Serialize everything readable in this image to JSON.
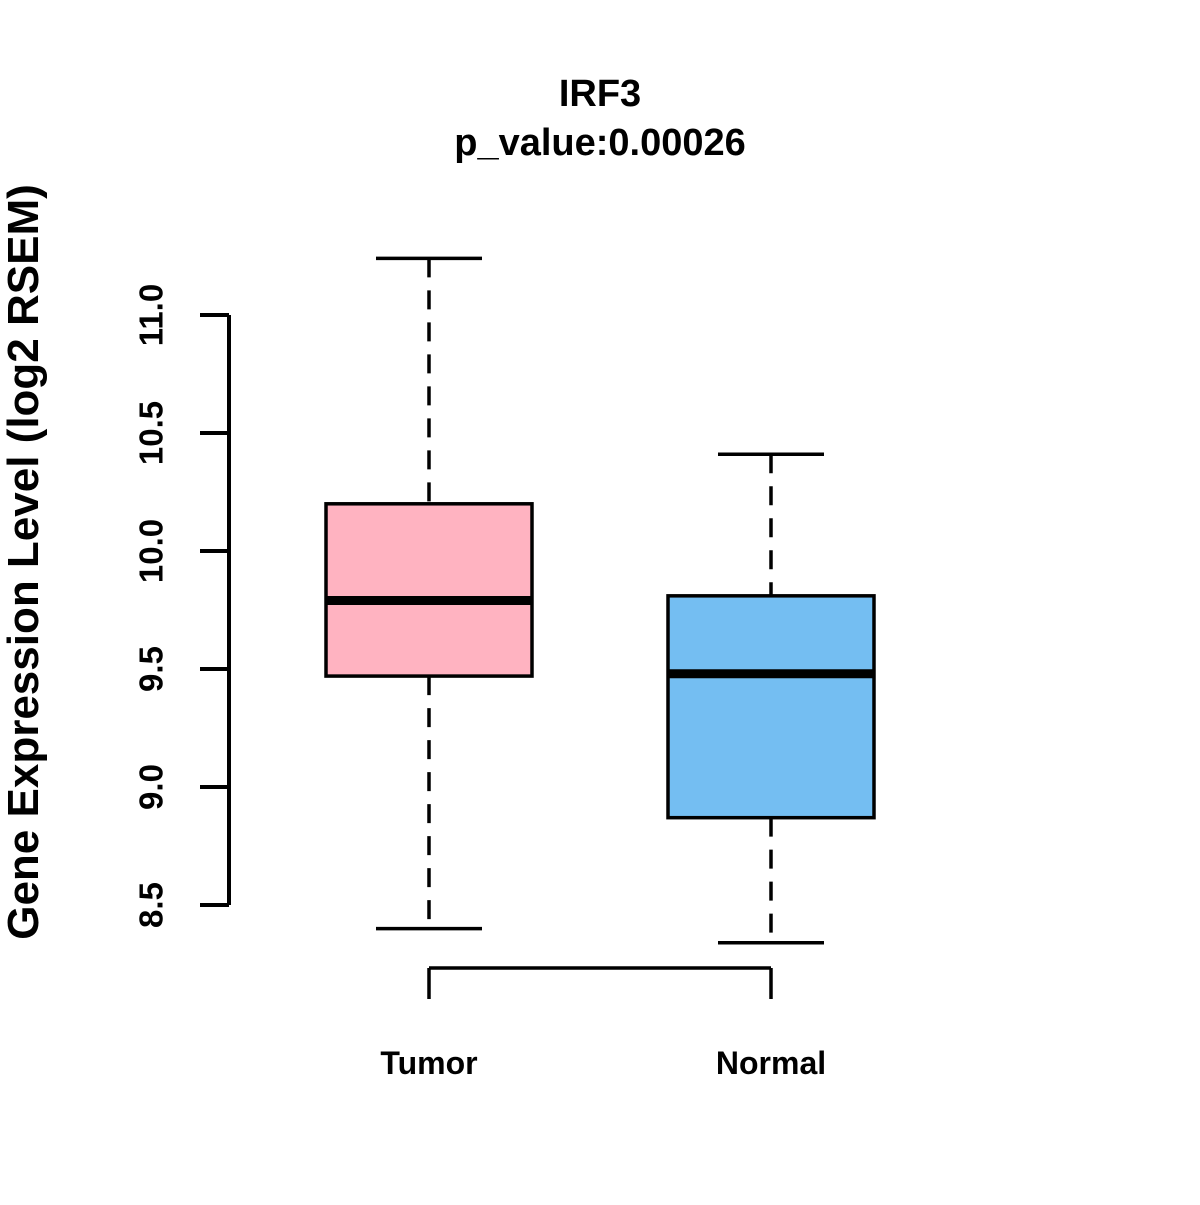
{
  "chart_data": {
    "type": "boxplot",
    "title": "IRF3",
    "subtitle": "p_value:0.00026",
    "ylabel": "Gene Expression Level (log2 RSEM)",
    "xlabel": "",
    "categories": [
      "Tumor",
      "Normal"
    ],
    "y_axis": {
      "range": [
        8.5,
        11.0
      ],
      "tick_values": [
        8.5,
        9.0,
        9.5,
        10.0,
        10.5,
        11.0
      ],
      "tick_labels": [
        "8.5",
        "9.0",
        "9.5",
        "10.0",
        "10.5",
        "11.0"
      ]
    },
    "series": [
      {
        "name": "Tumor",
        "fill_color": "#FFB3C1",
        "whisker_low": 8.4,
        "q1": 9.47,
        "median": 9.79,
        "q3": 10.2,
        "whisker_high": 11.24
      },
      {
        "name": "Normal",
        "fill_color": "#74BEF2",
        "whisker_low": 8.34,
        "q1": 8.87,
        "median": 9.48,
        "q3": 9.81,
        "whisker_high": 10.41
      }
    ],
    "style": {
      "stroke_color": "#000000",
      "background_color": "#FFFFFF",
      "whisker_line": "dashed",
      "grid": false,
      "legend": "none"
    }
  }
}
